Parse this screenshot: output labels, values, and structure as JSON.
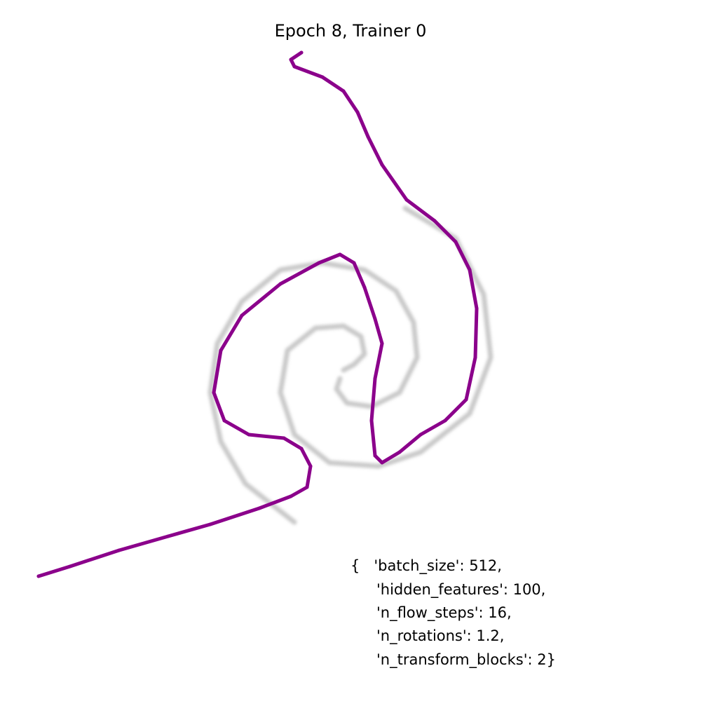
{
  "chart_data": {
    "type": "scatter",
    "title": "Epoch 8, Trainer 0",
    "annotation": [
      "{   'batch_size': 512,",
      "'hidden_features': 100,",
      "'n_flow_steps': 16,",
      "'n_rotations': 1.2,",
      "'n_transform_blocks': 2}"
    ],
    "xlim": [
      -5,
      5
    ],
    "ylim": [
      -5,
      5
    ],
    "series": [
      {
        "color": "#888888",
        "x": [
          0.78,
          1.5,
          1.9,
          2.0,
          1.7,
          1.0,
          0.4,
          -0.3,
          -0.8,
          -1.0,
          -0.9,
          -0.5,
          -0.1,
          0.15,
          0.2,
          0.05,
          -0.1,
          null,
          -0.15,
          -0.2,
          -0.05,
          0.3,
          0.7,
          0.95,
          0.9,
          0.65,
          0.2,
          -0.4,
          -1.0,
          -1.55,
          -1.9,
          -2.0,
          -1.85,
          -1.5,
          -0.8
        ],
        "y": [
          2.03,
          1.6,
          0.8,
          -0.1,
          -0.9,
          -1.45,
          -1.65,
          -1.6,
          -1.2,
          -0.6,
          0,
          0.32,
          0.35,
          0.2,
          -0.05,
          -0.2,
          -0.28,
          null,
          -0.4,
          -0.55,
          -0.75,
          -0.8,
          -0.6,
          -0.1,
          0.4,
          0.85,
          1.15,
          1.25,
          1.15,
          0.7,
          0.1,
          -0.6,
          -1.3,
          -1.9,
          -2.45
        ]
      },
      {
        "color": "#8b008b",
        "x": [
          -0.7,
          -0.85,
          -0.8,
          -0.4,
          -0.1,
          0.1,
          0.25,
          0.45,
          0.8,
          1.2,
          1.5,
          1.7,
          1.8,
          1.78,
          1.65,
          1.35,
          1.0,
          0.7,
          0.45,
          0.35,
          0.3,
          0.35,
          0.45,
          0.35,
          0.2,
          0.05,
          -0.15,
          -0.45,
          -1.0,
          -1.55,
          -1.85,
          -1.95,
          -1.8,
          -1.45,
          -0.95,
          -0.7,
          -0.57,
          -0.62,
          -0.85,
          -1.3,
          -2.0,
          -2.6,
          -3.3,
          -4.0,
          -4.45
        ],
        "y": [
          4.25,
          4.15,
          4.05,
          3.9,
          3.7,
          3.4,
          3.05,
          2.65,
          2.15,
          1.85,
          1.55,
          1.15,
          0.6,
          -0.1,
          -0.7,
          -1.0,
          -1.2,
          -1.45,
          -1.6,
          -1.5,
          -1.0,
          -0.4,
          0.1,
          0.45,
          0.9,
          1.25,
          1.37,
          1.25,
          0.95,
          0.5,
          0,
          -0.6,
          -1.0,
          -1.2,
          -1.25,
          -1.4,
          -1.65,
          -1.95,
          -2.08,
          -2.25,
          -2.48,
          -2.65,
          -2.85,
          -3.08,
          -3.22
        ]
      }
    ]
  }
}
